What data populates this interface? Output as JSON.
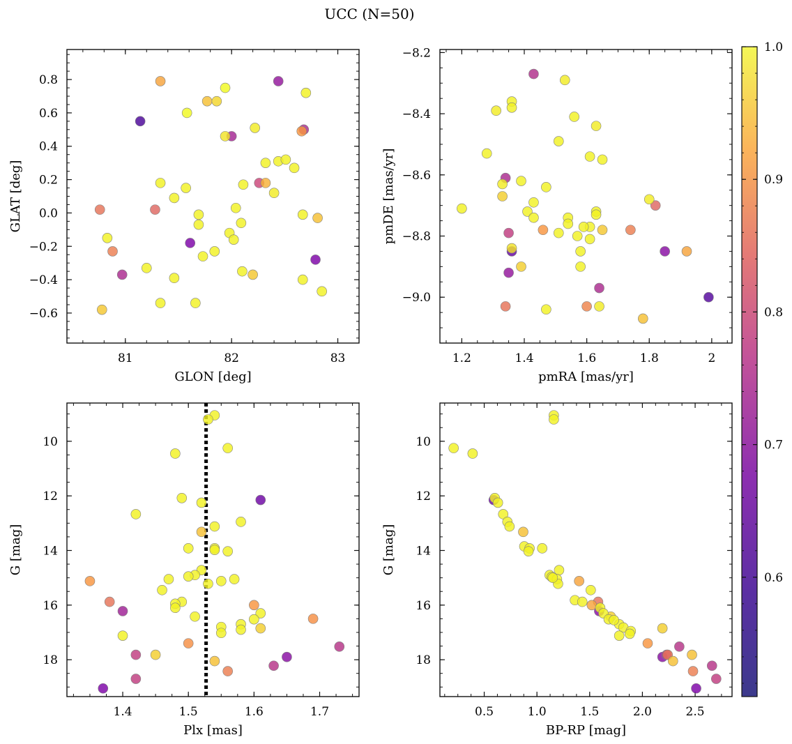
{
  "figure": {
    "title": "UCC (N=50)"
  },
  "colorbar": {
    "range": [
      0.51,
      1.0
    ],
    "ticks": [
      "0.6",
      "0.7",
      "0.8",
      "0.9",
      "1.0"
    ],
    "tick_values": [
      0.6,
      0.7,
      0.8,
      0.9,
      1.0
    ],
    "colormap": "plasma"
  },
  "chart_data": [
    {
      "type": "scatter",
      "panel": "top-left",
      "xlabel": "GLON [deg]",
      "ylabel": "GLAT [deg]",
      "xlim": [
        80.45,
        83.2
      ],
      "ylim": [
        -0.78,
        0.98
      ],
      "xticks": [
        81,
        82,
        83
      ],
      "yticks": [
        -0.6,
        -0.4,
        -0.2,
        0.0,
        0.2,
        0.4,
        0.6,
        0.8
      ],
      "ytick_labels": [
        "−0.6",
        "−0.4",
        "−0.2",
        "0.0",
        "0.2",
        "0.4",
        "0.6",
        "0.8"
      ],
      "points": [
        [
          81.33,
          0.79,
          0.88
        ],
        [
          81.14,
          0.55,
          0.52
        ],
        [
          81.58,
          0.6,
          1.0
        ],
        [
          81.77,
          0.67,
          0.92
        ],
        [
          81.86,
          0.67,
          0.95
        ],
        [
          81.94,
          0.75,
          1.0
        ],
        [
          82.44,
          0.79,
          0.62
        ],
        [
          82.7,
          0.72,
          0.99
        ],
        [
          81.94,
          0.46,
          0.97
        ],
        [
          82.0,
          0.46,
          0.65
        ],
        [
          82.22,
          0.51,
          0.98
        ],
        [
          82.68,
          0.5,
          0.66
        ],
        [
          82.66,
          0.49,
          0.86
        ],
        [
          82.32,
          0.3,
          0.99
        ],
        [
          82.44,
          0.31,
          0.99
        ],
        [
          82.51,
          0.32,
          0.99
        ],
        [
          82.59,
          0.27,
          0.99
        ],
        [
          81.33,
          0.18,
          0.99
        ],
        [
          81.57,
          0.15,
          0.99
        ],
        [
          82.11,
          0.17,
          0.99
        ],
        [
          82.26,
          0.18,
          0.72
        ],
        [
          82.32,
          0.18,
          0.9
        ],
        [
          82.4,
          0.12,
          0.98
        ],
        [
          81.46,
          0.09,
          0.99
        ],
        [
          82.04,
          0.03,
          0.99
        ],
        [
          80.76,
          0.02,
          0.8
        ],
        [
          81.28,
          0.02,
          0.78
        ],
        [
          81.69,
          -0.01,
          0.99
        ],
        [
          82.67,
          -0.01,
          0.99
        ],
        [
          82.81,
          -0.03,
          0.92
        ],
        [
          81.69,
          -0.07,
          0.99
        ],
        [
          82.09,
          -0.06,
          0.99
        ],
        [
          81.98,
          -0.12,
          0.99
        ],
        [
          80.83,
          -0.15,
          0.99
        ],
        [
          82.02,
          -0.16,
          0.99
        ],
        [
          81.61,
          -0.18,
          0.58
        ],
        [
          80.88,
          -0.23,
          0.82
        ],
        [
          81.84,
          -0.23,
          0.99
        ],
        [
          81.73,
          -0.26,
          0.99
        ],
        [
          82.79,
          -0.28,
          0.58
        ],
        [
          81.2,
          -0.33,
          0.99
        ],
        [
          82.1,
          -0.35,
          0.99
        ],
        [
          80.97,
          -0.37,
          0.66
        ],
        [
          82.2,
          -0.37,
          0.93
        ],
        [
          81.46,
          -0.39,
          0.99
        ],
        [
          82.67,
          -0.4,
          0.99
        ],
        [
          82.85,
          -0.47,
          0.99
        ],
        [
          81.33,
          -0.54,
          0.99
        ],
        [
          81.66,
          -0.54,
          0.99
        ],
        [
          80.78,
          -0.58,
          0.93
        ]
      ]
    },
    {
      "type": "scatter",
      "panel": "top-right",
      "xlabel": "pmRA [mas/yr]",
      "ylabel": "pmDE [mas/yr]",
      "xlim": [
        1.13,
        2.065
      ],
      "ylim": [
        -9.15,
        -8.19
      ],
      "xticks": [
        1.2,
        1.4,
        1.6,
        1.8,
        2.0
      ],
      "yticks": [
        -9.0,
        -8.8,
        -8.6,
        -8.4,
        -8.2
      ],
      "ytick_labels": [
        "−9.0",
        "−8.8",
        "−8.6",
        "−8.4",
        "−8.2"
      ],
      "points": [
        [
          1.43,
          -8.27,
          0.67
        ],
        [
          1.53,
          -8.29,
          0.98
        ],
        [
          1.36,
          -8.36,
          0.99
        ],
        [
          1.31,
          -8.39,
          0.98
        ],
        [
          1.36,
          -8.38,
          0.99
        ],
        [
          1.56,
          -8.41,
          0.99
        ],
        [
          1.63,
          -8.44,
          0.98
        ],
        [
          1.51,
          -8.49,
          0.99
        ],
        [
          1.28,
          -8.53,
          0.99
        ],
        [
          1.61,
          -8.54,
          0.99
        ],
        [
          1.65,
          -8.55,
          0.99
        ],
        [
          1.34,
          -8.61,
          0.66
        ],
        [
          1.33,
          -8.63,
          0.98
        ],
        [
          1.39,
          -8.62,
          0.99
        ],
        [
          1.47,
          -8.64,
          0.99
        ],
        [
          1.33,
          -8.67,
          0.94
        ],
        [
          1.43,
          -8.69,
          0.99
        ],
        [
          1.8,
          -8.68,
          0.98
        ],
        [
          1.82,
          -8.7,
          0.78
        ],
        [
          1.2,
          -8.71,
          0.99
        ],
        [
          1.41,
          -8.72,
          0.99
        ],
        [
          1.63,
          -8.72,
          0.99
        ],
        [
          1.63,
          -8.73,
          0.99
        ],
        [
          1.43,
          -8.74,
          0.99
        ],
        [
          1.54,
          -8.74,
          0.99
        ],
        [
          1.54,
          -8.76,
          0.99
        ],
        [
          1.61,
          -8.77,
          0.99
        ],
        [
          1.59,
          -8.77,
          0.99
        ],
        [
          1.65,
          -8.78,
          0.93
        ],
        [
          1.74,
          -8.78,
          0.82
        ],
        [
          1.46,
          -8.78,
          0.86
        ],
        [
          1.35,
          -8.79,
          0.7
        ],
        [
          1.51,
          -8.79,
          0.99
        ],
        [
          1.57,
          -8.8,
          0.99
        ],
        [
          1.61,
          -8.81,
          0.99
        ],
        [
          1.36,
          -8.84,
          0.97
        ],
        [
          1.36,
          -8.85,
          0.55
        ],
        [
          1.58,
          -8.85,
          0.99
        ],
        [
          1.85,
          -8.85,
          0.6
        ],
        [
          1.92,
          -8.85,
          0.88
        ],
        [
          1.39,
          -8.9,
          0.94
        ],
        [
          1.58,
          -8.9,
          0.99
        ],
        [
          1.35,
          -8.92,
          0.62
        ],
        [
          1.64,
          -8.97,
          0.66
        ],
        [
          1.99,
          -9.0,
          0.53
        ],
        [
          1.34,
          -9.03,
          0.8
        ],
        [
          1.6,
          -9.03,
          0.83
        ],
        [
          1.64,
          -9.03,
          0.98
        ],
        [
          1.47,
          -9.04,
          0.99
        ],
        [
          1.78,
          -9.07,
          0.92
        ]
      ]
    },
    {
      "type": "scatter",
      "panel": "bottom-left",
      "xlabel": "Plx [mas]",
      "ylabel": "G [mag]",
      "xlim": [
        1.315,
        1.76
      ],
      "ylim": [
        19.35,
        8.6
      ],
      "y_inverted": true,
      "xticks": [
        1.4,
        1.5,
        1.6,
        1.7
      ],
      "yticks": [
        10,
        12,
        14,
        16,
        18
      ],
      "vline": {
        "x": 1.527,
        "style": "dotted"
      },
      "points": [
        [
          1.54,
          9.05,
          0.99
        ],
        [
          1.53,
          9.2,
          0.99
        ],
        [
          1.56,
          10.25,
          0.99
        ],
        [
          1.48,
          10.45,
          0.99
        ],
        [
          1.49,
          12.08,
          0.99
        ],
        [
          1.61,
          12.15,
          0.56
        ],
        [
          1.52,
          12.25,
          0.99
        ],
        [
          1.42,
          12.67,
          0.99
        ],
        [
          1.58,
          12.95,
          0.99
        ],
        [
          1.54,
          13.12,
          0.99
        ],
        [
          1.52,
          13.32,
          0.92
        ],
        [
          1.54,
          13.92,
          0.99
        ],
        [
          1.5,
          13.92,
          0.99
        ],
        [
          1.54,
          13.98,
          0.99
        ],
        [
          1.56,
          14.03,
          0.99
        ],
        [
          1.52,
          14.72,
          0.99
        ],
        [
          1.51,
          14.9,
          0.99
        ],
        [
          1.5,
          14.95,
          0.99
        ],
        [
          1.47,
          15.05,
          0.99
        ],
        [
          1.57,
          15.05,
          0.99
        ],
        [
          1.55,
          15.12,
          0.99
        ],
        [
          1.35,
          15.12,
          0.86
        ],
        [
          1.53,
          15.22,
          0.99
        ],
        [
          1.46,
          15.45,
          0.99
        ],
        [
          1.38,
          15.88,
          0.8
        ],
        [
          1.49,
          15.88,
          0.99
        ],
        [
          1.48,
          15.95,
          0.99
        ],
        [
          1.48,
          16.1,
          0.99
        ],
        [
          1.6,
          16.0,
          0.86
        ],
        [
          1.4,
          16.22,
          0.64
        ],
        [
          1.61,
          16.3,
          0.99
        ],
        [
          1.51,
          16.42,
          0.99
        ],
        [
          1.69,
          16.5,
          0.85
        ],
        [
          1.6,
          16.52,
          0.99
        ],
        [
          1.58,
          16.7,
          0.99
        ],
        [
          1.55,
          16.8,
          0.99
        ],
        [
          1.61,
          16.85,
          0.94
        ],
        [
          1.58,
          16.9,
          0.99
        ],
        [
          1.55,
          17.02,
          0.99
        ],
        [
          1.4,
          17.12,
          0.99
        ],
        [
          1.5,
          17.4,
          0.85
        ],
        [
          1.73,
          17.52,
          0.68
        ],
        [
          1.45,
          17.82,
          0.94
        ],
        [
          1.42,
          17.82,
          0.7
        ],
        [
          1.65,
          17.9,
          0.6
        ],
        [
          1.54,
          18.05,
          0.92
        ],
        [
          1.63,
          18.22,
          0.68
        ],
        [
          1.56,
          18.42,
          0.82
        ],
        [
          1.42,
          18.7,
          0.7
        ],
        [
          1.37,
          19.05,
          0.58
        ]
      ]
    },
    {
      "type": "scatter",
      "panel": "bottom-right",
      "xlabel": "BP-RP [mag]",
      "ylabel": "G [mag]",
      "xlim": [
        0.08,
        2.85
      ],
      "ylim": [
        19.35,
        8.6
      ],
      "y_inverted": true,
      "xticks": [
        0.5,
        1.0,
        1.5,
        2.0,
        2.5
      ],
      "xtick_labels": [
        "0.5",
        "1.0",
        "1.5",
        "2.0",
        "2.5"
      ],
      "yticks": [
        10,
        12,
        14,
        16,
        18
      ],
      "points": [
        [
          1.16,
          9.05,
          0.99
        ],
        [
          1.16,
          9.2,
          0.99
        ],
        [
          0.21,
          10.25,
          0.99
        ],
        [
          0.39,
          10.45,
          0.99
        ],
        [
          0.59,
          12.15,
          0.56
        ],
        [
          0.6,
          12.08,
          0.99
        ],
        [
          0.63,
          12.25,
          0.99
        ],
        [
          0.68,
          12.67,
          0.99
        ],
        [
          0.72,
          12.95,
          0.99
        ],
        [
          0.74,
          13.12,
          0.99
        ],
        [
          0.87,
          13.32,
          0.92
        ],
        [
          0.88,
          13.85,
          0.99
        ],
        [
          0.93,
          13.92,
          0.99
        ],
        [
          0.92,
          14.03,
          0.99
        ],
        [
          1.05,
          13.92,
          0.99
        ],
        [
          1.21,
          14.72,
          0.99
        ],
        [
          1.12,
          14.9,
          0.99
        ],
        [
          1.14,
          14.97,
          0.99
        ],
        [
          1.19,
          15.05,
          0.99
        ],
        [
          1.2,
          15.22,
          0.99
        ],
        [
          1.4,
          15.12,
          0.88
        ],
        [
          1.51,
          15.45,
          0.99
        ],
        [
          1.36,
          15.82,
          0.99
        ],
        [
          1.43,
          15.88,
          0.99
        ],
        [
          1.58,
          15.88,
          0.8
        ],
        [
          1.52,
          16.0,
          0.88
        ],
        [
          1.6,
          16.1,
          0.99
        ],
        [
          1.59,
          16.22,
          0.6
        ],
        [
          1.63,
          16.3,
          0.99
        ],
        [
          1.7,
          16.42,
          0.94
        ],
        [
          1.68,
          16.52,
          0.99
        ],
        [
          1.78,
          16.7,
          0.99
        ],
        [
          1.82,
          16.82,
          0.99
        ],
        [
          1.89,
          16.95,
          0.99
        ],
        [
          2.19,
          16.85,
          0.94
        ],
        [
          1.88,
          17.05,
          0.99
        ],
        [
          1.78,
          17.12,
          0.99
        ],
        [
          2.05,
          17.4,
          0.86
        ],
        [
          2.35,
          17.52,
          0.68
        ],
        [
          2.23,
          17.82,
          0.7
        ],
        [
          2.47,
          17.82,
          0.92
        ],
        [
          2.19,
          17.9,
          0.6
        ],
        [
          2.24,
          17.82,
          0.8
        ],
        [
          2.29,
          18.05,
          0.92
        ],
        [
          2.66,
          18.22,
          0.68
        ],
        [
          2.48,
          18.42,
          0.82
        ],
        [
          2.7,
          18.7,
          0.7
        ],
        [
          2.51,
          19.05,
          0.58
        ],
        [
          1.73,
          16.55,
          0.99
        ],
        [
          1.15,
          15.0,
          0.99
        ]
      ]
    }
  ]
}
